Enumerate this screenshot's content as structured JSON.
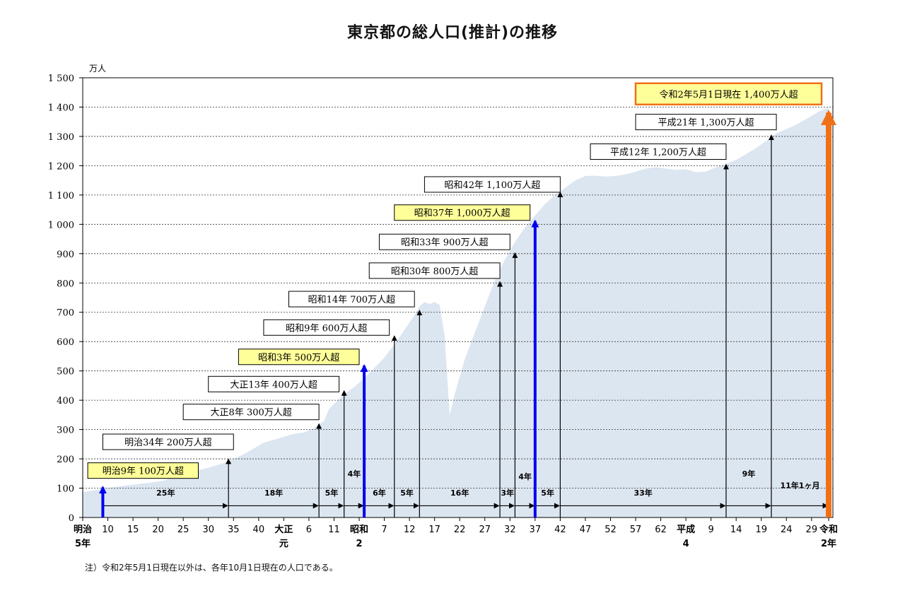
{
  "chart_data": {
    "type": "area",
    "title": "東京都の総人口(推計)の推移",
    "unit_label": "万人",
    "ylim": [
      0,
      1500
    ],
    "yticks": [
      0,
      100,
      200,
      300,
      400,
      500,
      600,
      700,
      800,
      900,
      1000,
      1100,
      1200,
      1300,
      1400,
      1500
    ],
    "ytick_labels": [
      "0",
      "100",
      "200",
      "300",
      "400",
      "500",
      "600",
      "700",
      "800",
      "900",
      "1 000",
      "1 100",
      "1 200",
      "1 300",
      "1 400",
      "1 500"
    ],
    "grid": true,
    "xlim": [
      1872,
      2020.4
    ],
    "xticks": [
      {
        "x": 1872,
        "lines": [
          "明治",
          "5年"
        ]
      },
      {
        "x": 1877,
        "lines": [
          "10"
        ]
      },
      {
        "x": 1882,
        "lines": [
          "15"
        ]
      },
      {
        "x": 1887,
        "lines": [
          "20"
        ]
      },
      {
        "x": 1892,
        "lines": [
          "25"
        ]
      },
      {
        "x": 1897,
        "lines": [
          "30"
        ]
      },
      {
        "x": 1902,
        "lines": [
          "35"
        ]
      },
      {
        "x": 1907,
        "lines": [
          "40"
        ]
      },
      {
        "x": 1912,
        "lines": [
          "大正",
          "元"
        ]
      },
      {
        "x": 1917,
        "lines": [
          "6"
        ]
      },
      {
        "x": 1922,
        "lines": [
          "11"
        ]
      },
      {
        "x": 1927,
        "lines": [
          "昭和",
          "2"
        ]
      },
      {
        "x": 1932,
        "lines": [
          "7"
        ]
      },
      {
        "x": 1937,
        "lines": [
          "12"
        ]
      },
      {
        "x": 1942,
        "lines": [
          "17"
        ]
      },
      {
        "x": 1947,
        "lines": [
          "22"
        ]
      },
      {
        "x": 1952,
        "lines": [
          "27"
        ]
      },
      {
        "x": 1957,
        "lines": [
          "32"
        ]
      },
      {
        "x": 1962,
        "lines": [
          "37"
        ]
      },
      {
        "x": 1967,
        "lines": [
          "42"
        ]
      },
      {
        "x": 1972,
        "lines": [
          "47"
        ]
      },
      {
        "x": 1977,
        "lines": [
          "52"
        ]
      },
      {
        "x": 1982,
        "lines": [
          "57"
        ]
      },
      {
        "x": 1987,
        "lines": [
          "62"
        ]
      },
      {
        "x": 1992,
        "lines": [
          "平成",
          "4"
        ]
      },
      {
        "x": 1997,
        "lines": [
          "9"
        ]
      },
      {
        "x": 2002,
        "lines": [
          "14"
        ]
      },
      {
        "x": 2007,
        "lines": [
          "19"
        ]
      },
      {
        "x": 2012,
        "lines": [
          "24"
        ]
      },
      {
        "x": 2017,
        "lines": [
          "29"
        ]
      },
      {
        "x": 2020.4,
        "lines": [
          "令和",
          "2年"
        ]
      }
    ],
    "series": [
      {
        "x": [
          1872,
          1874,
          1876,
          1878,
          1880,
          1884,
          1888,
          1892,
          1896,
          1900,
          1902,
          1904,
          1906,
          1908,
          1910,
          1912,
          1914,
          1916,
          1918,
          1920,
          1921,
          1922,
          1924,
          1926,
          1928,
          1930,
          1932,
          1934,
          1936,
          1938,
          1939,
          1940,
          1941,
          1942,
          1943,
          1944,
          1945,
          1946,
          1948,
          1950,
          1952,
          1954,
          1956,
          1958,
          1960,
          1962,
          1964,
          1966,
          1968,
          1970,
          1972,
          1974,
          1976,
          1978,
          1980,
          1982,
          1984,
          1986,
          1988,
          1990,
          1992,
          1994,
          1996,
          1998,
          2000,
          2002,
          2004,
          2006,
          2008,
          2010,
          2012,
          2014,
          2016,
          2018,
          2020.4
        ],
        "values": [
          86,
          92,
          97,
          103,
          108,
          116,
          125,
          150,
          165,
          185,
          200,
          215,
          235,
          255,
          265,
          275,
          285,
          290,
          305,
          330,
          370,
          388,
          420,
          445,
          475,
          510,
          545,
          590,
          640,
          690,
          720,
          735,
          728,
          735,
          725,
          620,
          350,
          420,
          540,
          630,
          720,
          810,
          880,
          940,
          990,
          1030,
          1070,
          1100,
          1125,
          1150,
          1165,
          1166,
          1163,
          1165,
          1170,
          1180,
          1190,
          1195,
          1190,
          1186,
          1188,
          1178,
          1180,
          1195,
          1206,
          1220,
          1240,
          1260,
          1285,
          1310,
          1325,
          1340,
          1360,
          1380,
          1400
        ]
      }
    ],
    "milestones": [
      {
        "x": 1876,
        "arrow_top": 110,
        "label": "明治9年  100万人超",
        "box_x0": 1873,
        "box_x1": 1895,
        "box_y": 160,
        "highlight": true,
        "color": "blue"
      },
      {
        "x": 1901,
        "arrow_top": 205,
        "label": "明治34年  200万人超",
        "box_x0": 1876,
        "box_x1": 1902,
        "box_y": 258,
        "highlight": false,
        "color": "black"
      },
      {
        "x": 1919,
        "arrow_top": 325,
        "label": "大正8年  300万人超",
        "box_x0": 1892,
        "box_x1": 1919,
        "box_y": 360,
        "highlight": false,
        "color": "black"
      },
      {
        "x": 1924,
        "arrow_top": 438,
        "label": "大正13年  400万人超",
        "box_x0": 1897,
        "box_x1": 1923,
        "box_y": 455,
        "highlight": false,
        "color": "black"
      },
      {
        "x": 1928,
        "arrow_top": 525,
        "label": "昭和3年  500万人超",
        "box_x0": 1903,
        "box_x1": 1927,
        "box_y": 548,
        "highlight": true,
        "color": "blue"
      },
      {
        "x": 1934,
        "arrow_top": 625,
        "label": "昭和9年  600万人超",
        "box_x0": 1908,
        "box_x1": 1933,
        "box_y": 648,
        "highlight": false,
        "color": "black"
      },
      {
        "x": 1939,
        "arrow_top": 712,
        "label": "昭和14年  700万人超",
        "box_x0": 1913,
        "box_x1": 1938,
        "box_y": 745,
        "highlight": false,
        "color": "black"
      },
      {
        "x": 1955,
        "arrow_top": 810,
        "label": "昭和30年  800万人超",
        "box_x0": 1929,
        "box_x1": 1955,
        "box_y": 842,
        "highlight": false,
        "color": "black"
      },
      {
        "x": 1958,
        "arrow_top": 908,
        "label": "昭和33年  900万人超",
        "box_x0": 1931,
        "box_x1": 1957,
        "box_y": 940,
        "highlight": false,
        "color": "black"
      },
      {
        "x": 1962,
        "arrow_top": 1018,
        "label": "昭和37年  1,000万人超",
        "box_x0": 1934,
        "box_x1": 1961,
        "box_y": 1040,
        "highlight": true,
        "color": "blue"
      },
      {
        "x": 1967,
        "arrow_top": 1115,
        "label": "昭和42年  1,100万人超",
        "box_x0": 1940,
        "box_x1": 1967,
        "box_y": 1136,
        "highlight": false,
        "color": "black"
      },
      {
        "x": 2000,
        "arrow_top": 1210,
        "label": "平成12年  1,200万人超",
        "box_x0": 1973,
        "box_x1": 2000,
        "box_y": 1248,
        "highlight": false,
        "color": "black"
      },
      {
        "x": 2009,
        "arrow_top": 1310,
        "label": "平成21年  1,300万人超",
        "box_x0": 1982,
        "box_x1": 2010,
        "box_y": 1349,
        "highlight": false,
        "color": "black"
      },
      {
        "x": 2020.4,
        "arrow_top": 1400,
        "label": "令和2年5月1日現在  1,400万人超",
        "box_x0": 1982,
        "box_x1": 2019,
        "box_y": 1445,
        "highlight": true,
        "color": "orange"
      }
    ],
    "intervals": [
      {
        "x0": 1876,
        "x1": 1901,
        "label": "25年",
        "label_y": 75
      },
      {
        "x0": 1901,
        "x1": 1919,
        "label": "18年",
        "label_y": 75
      },
      {
        "x0": 1919,
        "x1": 1924,
        "label": "5年",
        "label_y": 75
      },
      {
        "x0": 1924,
        "x1": 1928,
        "label": "4年",
        "label_y": 140
      },
      {
        "x0": 1928,
        "x1": 1934,
        "label": "6年",
        "label_y": 75
      },
      {
        "x0": 1934,
        "x1": 1939,
        "label": "5年",
        "label_y": 75
      },
      {
        "x0": 1939,
        "x1": 1955,
        "label": "16年",
        "label_y": 75
      },
      {
        "x0": 1955,
        "x1": 1958,
        "label": "3年",
        "label_y": 75
      },
      {
        "x0": 1958,
        "x1": 1962,
        "label": "4年",
        "label_y": 130
      },
      {
        "x0": 1962,
        "x1": 1967,
        "label": "5年",
        "label_y": 75
      },
      {
        "x0": 1967,
        "x1": 2000,
        "label": "33年",
        "label_y": 75
      },
      {
        "x0": 2000,
        "x1": 2009,
        "label": "9年",
        "label_y": 140
      },
      {
        "x0": 2009,
        "x1": 2020.4,
        "label": "11年1ヶ月",
        "label_y": 100
      }
    ]
  },
  "colors": {
    "area": "#dce6f1",
    "highlight_fill": "#ffff99",
    "blue_arrow": "#0000ee",
    "orange_arrow": "#f07018",
    "orange_border": "#f07018"
  },
  "footnote": "注）令和2年5月1日現在以外は、各年10月1日現在の人口である。"
}
